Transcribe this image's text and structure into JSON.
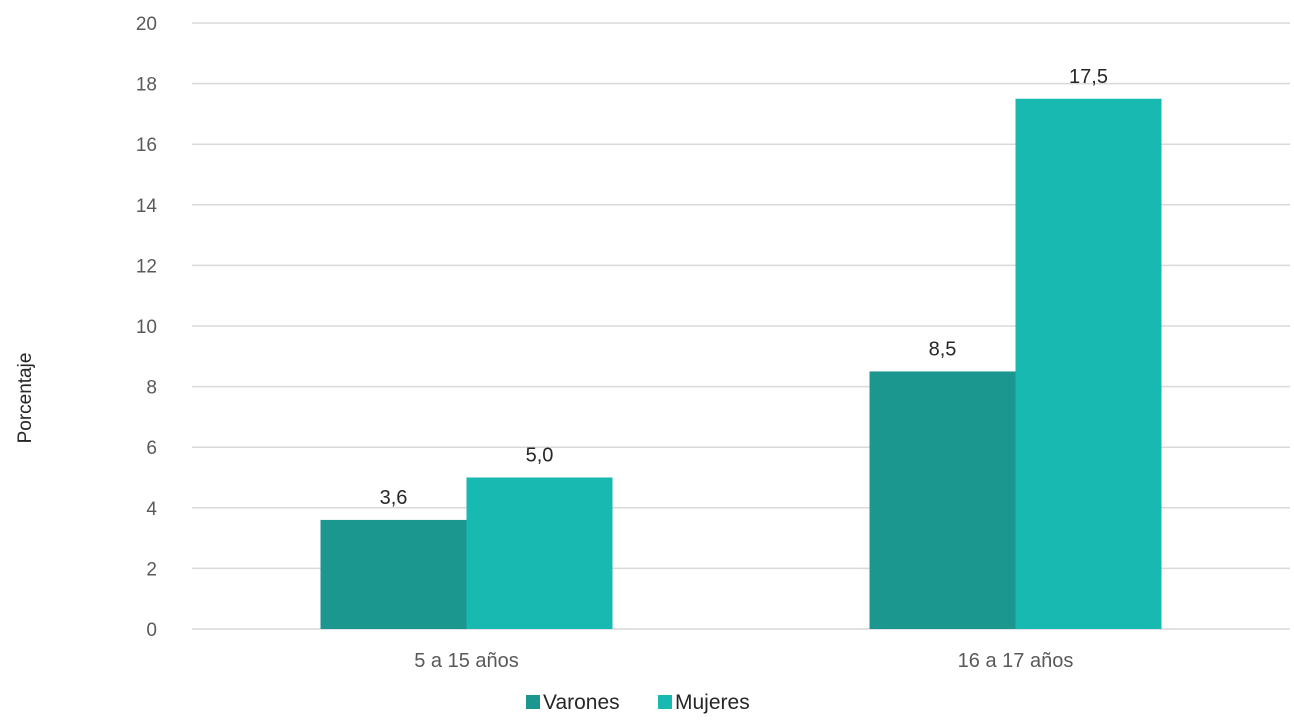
{
  "chart_data": {
    "type": "bar",
    "categories": [
      "5 a 15 años",
      "16 a 17 años"
    ],
    "series": [
      {
        "name": "Varones",
        "values": [
          3.6,
          8.5
        ],
        "labels": [
          "3,6",
          "8,5"
        ],
        "color": "#1c9790"
      },
      {
        "name": "Mujeres",
        "values": [
          5.0,
          17.5
        ],
        "labels": [
          "5,0",
          "17,5"
        ],
        "color": "#17b9b1"
      }
    ],
    "title": "",
    "xlabel": "",
    "ylabel": "Porcentaje",
    "ylim": [
      0,
      20
    ],
    "yticks": [
      0,
      2,
      4,
      6,
      8,
      10,
      12,
      14,
      16,
      18,
      20
    ],
    "grid": true,
    "legend_position": "bottom",
    "gridline_color": "#d9d9d9"
  }
}
